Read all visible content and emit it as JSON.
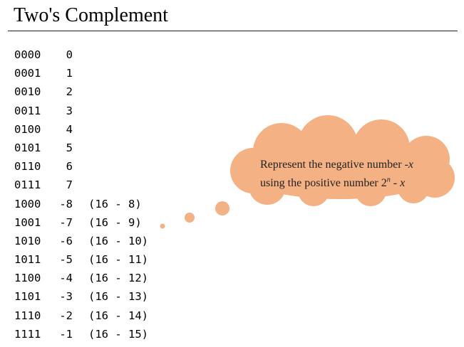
{
  "title": "Two's Complement",
  "rows": [
    {
      "bin": "0000",
      "dec": "0",
      "expr": ""
    },
    {
      "bin": "0001",
      "dec": "1",
      "expr": ""
    },
    {
      "bin": "0010",
      "dec": "2",
      "expr": ""
    },
    {
      "bin": "0011",
      "dec": "3",
      "expr": ""
    },
    {
      "bin": "0100",
      "dec": "4",
      "expr": ""
    },
    {
      "bin": "0101",
      "dec": "5",
      "expr": ""
    },
    {
      "bin": "0110",
      "dec": "6",
      "expr": ""
    },
    {
      "bin": "0111",
      "dec": "7",
      "expr": ""
    },
    {
      "bin": "1000",
      "dec": "-8",
      "expr": "(16 - 8)"
    },
    {
      "bin": "1001",
      "dec": "-7",
      "expr": "(16 - 9)"
    },
    {
      "bin": "1010",
      "dec": "-6",
      "expr": "(16 - 10)"
    },
    {
      "bin": "1011",
      "dec": "-5",
      "expr": "(16 - 11)"
    },
    {
      "bin": "1100",
      "dec": "-4",
      "expr": "(16 - 12)"
    },
    {
      "bin": "1101",
      "dec": "-3",
      "expr": "(16 - 13)"
    },
    {
      "bin": "1110",
      "dec": "-2",
      "expr": "(16 - 14)"
    },
    {
      "bin": "1111",
      "dec": "-1",
      "expr": "(16 - 15)"
    }
  ],
  "bubble": {
    "line1_prefix": "Represent the negative number -",
    "line1_var": "x",
    "line2_prefix": "using the positive number 2",
    "line2_sup": "n",
    "line2_mid": " - ",
    "line2_var": "x"
  },
  "colors": {
    "cloud_fill": "#f4b183",
    "text": "#000000",
    "rule": "#222222"
  }
}
